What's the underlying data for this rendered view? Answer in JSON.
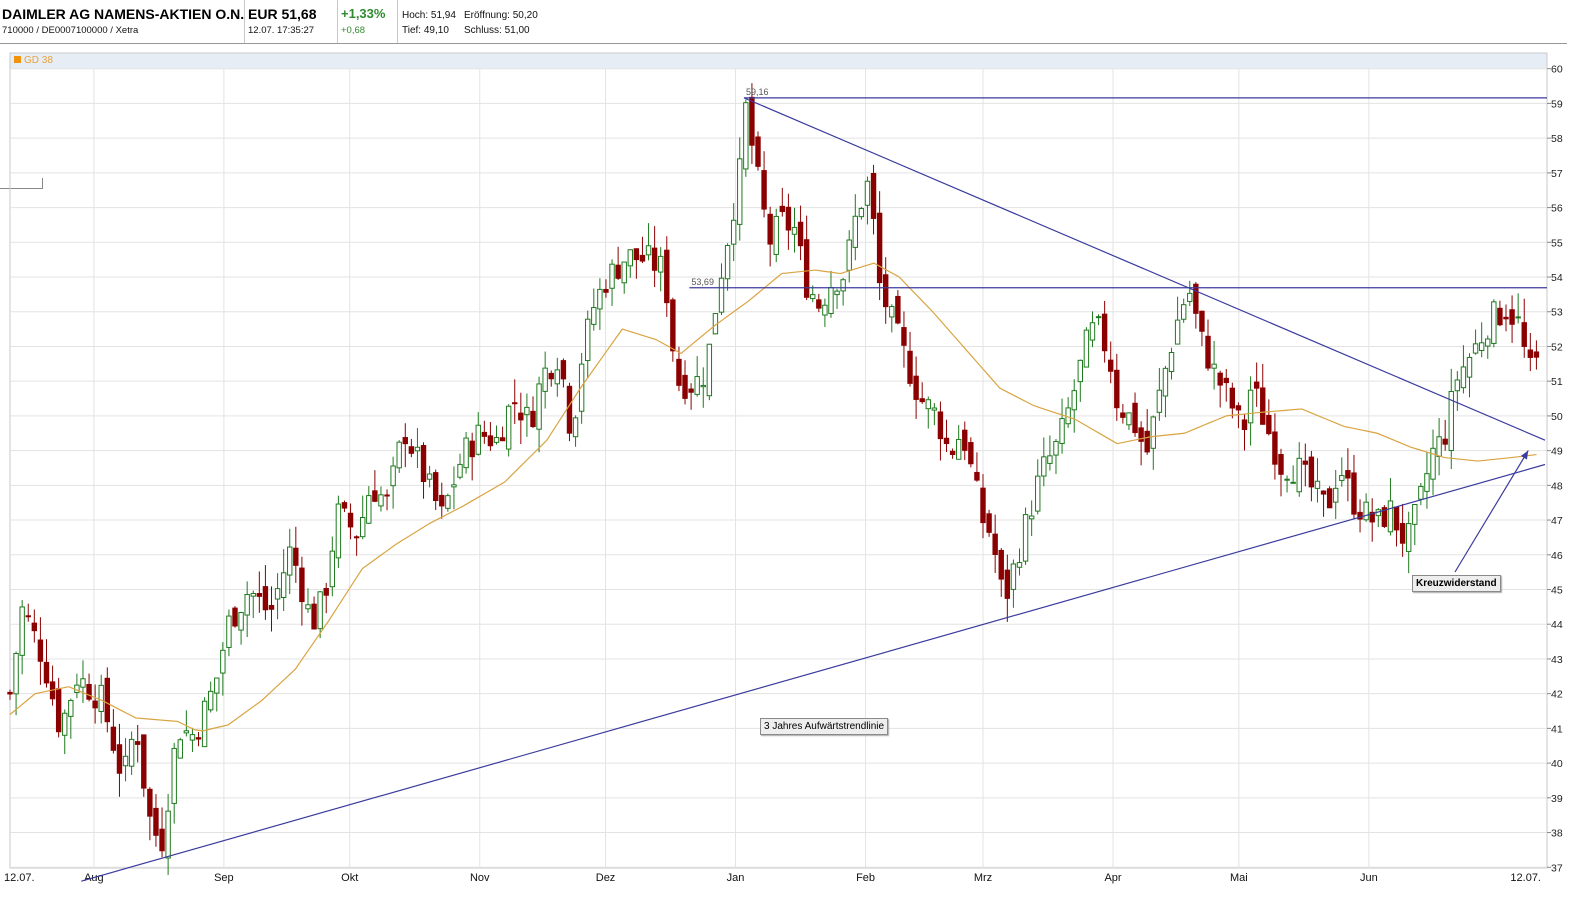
{
  "header": {
    "instrument_name": "DAIMLER AG NAMENS-AKTIEN O.N.",
    "identifiers": "710000 / DE0007100000 / Xetra",
    "price": "EUR 51,68",
    "timestamp": "12.07. 17:35:27",
    "change_pct": "+1,33%",
    "change_abs": "+0,68",
    "high": "Hoch: 51,94",
    "open": "Eröffnung: 50,20",
    "low": "Tief: 49,10",
    "close": "Schluss: 51,00"
  },
  "legend": {
    "label": "GD 38"
  },
  "colors": {
    "up": "#1e7a1e",
    "down": "#8b0000",
    "ma": "#d9a441",
    "trendline": "#3b3b9e",
    "positive": "#2e8b2e"
  },
  "chart_data": {
    "type": "candlestick",
    "ylim": [
      37,
      60
    ],
    "y_ticks": [
      "37",
      "38",
      "39",
      "40",
      "41",
      "42",
      "43",
      "44",
      "45",
      "46",
      "47",
      "48",
      "49",
      "50",
      "51",
      "52",
      "53",
      "54",
      "55",
      "56",
      "57",
      "58",
      "59",
      "60"
    ],
    "x_ticks": [
      {
        "label": "12.07.",
        "day": 0
      },
      {
        "label": "Aug",
        "day": 20
      },
      {
        "label": "Sep",
        "day": 51
      },
      {
        "label": "Okt",
        "day": 81
      },
      {
        "label": "Nov",
        "day": 112
      },
      {
        "label": "Dez",
        "day": 142
      },
      {
        "label": "Jan",
        "day": 173
      },
      {
        "label": "Feb",
        "day": 204
      },
      {
        "label": "Mrz",
        "day": 232
      },
      {
        "label": "Apr",
        "day": 263
      },
      {
        "label": "Mai",
        "day": 293
      },
      {
        "label": "Jun",
        "day": 324
      },
      {
        "label": "12.07.",
        "day": 365
      }
    ],
    "close_anchors": [
      [
        0,
        42.0
      ],
      [
        3,
        44.5
      ],
      [
        8,
        43.0
      ],
      [
        12,
        41.0
      ],
      [
        16,
        42.5
      ],
      [
        22,
        41.8
      ],
      [
        27,
        39.5
      ],
      [
        30,
        41.2
      ],
      [
        33,
        38.5
      ],
      [
        36,
        37.6
      ],
      [
        40,
        41.0
      ],
      [
        44,
        40.8
      ],
      [
        49,
        42.3
      ],
      [
        52,
        44.0
      ],
      [
        57,
        45.0
      ],
      [
        62,
        44.3
      ],
      [
        67,
        46.2
      ],
      [
        72,
        44.0
      ],
      [
        75,
        44.8
      ],
      [
        78,
        47.2
      ],
      [
        83,
        46.6
      ],
      [
        86,
        48.0
      ],
      [
        90,
        47.5
      ],
      [
        94,
        49.6
      ],
      [
        99,
        48.2
      ],
      [
        103,
        47.1
      ],
      [
        108,
        48.9
      ],
      [
        112,
        49.5
      ],
      [
        116,
        49.3
      ],
      [
        120,
        50.5
      ],
      [
        124,
        49.8
      ],
      [
        127,
        51.2
      ],
      [
        131,
        51.8
      ],
      [
        134,
        49.4
      ],
      [
        136,
        51.5
      ],
      [
        139,
        53.1
      ],
      [
        142,
        53.9
      ],
      [
        147,
        54.6
      ],
      [
        152,
        54.5
      ],
      [
        156,
        54.2
      ],
      [
        159,
        51.0
      ],
      [
        163,
        50.9
      ],
      [
        166,
        51.3
      ],
      [
        169,
        53.8
      ],
      [
        172,
        55.7
      ],
      [
        174,
        57.0
      ],
      [
        175,
        59.16
      ],
      [
        178,
        57.0
      ],
      [
        181,
        55.0
      ],
      [
        184,
        55.6
      ],
      [
        187,
        55.4
      ],
      [
        190,
        53.8
      ],
      [
        193,
        53.2
      ],
      [
        196,
        53.9
      ],
      [
        199,
        54.1
      ],
      [
        202,
        55.9
      ],
      [
        205,
        56.8
      ],
      [
        207,
        53.9
      ],
      [
        210,
        52.8
      ],
      [
        214,
        51.5
      ],
      [
        217,
        50.5
      ],
      [
        221,
        50.0
      ],
      [
        224,
        48.9
      ],
      [
        227,
        49.6
      ],
      [
        230,
        48.0
      ],
      [
        232,
        47.0
      ],
      [
        234,
        46.6
      ],
      [
        237,
        44.6
      ],
      [
        240,
        45.9
      ],
      [
        243,
        47.2
      ],
      [
        246,
        48.4
      ],
      [
        250,
        49.2
      ],
      [
        253,
        50.4
      ],
      [
        257,
        52.2
      ],
      [
        259,
        52.6
      ],
      [
        262,
        51.8
      ],
      [
        264,
        50.4
      ],
      [
        268,
        49.8
      ],
      [
        271,
        48.9
      ],
      [
        275,
        51.1
      ],
      [
        278,
        52.6
      ],
      [
        281,
        53.7
      ],
      [
        284,
        52.2
      ],
      [
        287,
        51.3
      ],
      [
        291,
        50.4
      ],
      [
        294,
        49.5
      ],
      [
        296,
        50.9
      ],
      [
        299,
        49.9
      ],
      [
        303,
        48.6
      ],
      [
        307,
        48.5
      ],
      [
        311,
        47.8
      ],
      [
        314,
        47.3
      ],
      [
        317,
        48.6
      ],
      [
        320,
        47.6
      ],
      [
        323,
        47.2
      ],
      [
        326,
        46.9
      ],
      [
        329,
        47.3
      ],
      [
        333,
        46.3
      ],
      [
        336,
        47.4
      ],
      [
        339,
        48.9
      ],
      [
        342,
        49.4
      ],
      [
        345,
        51.1
      ],
      [
        347,
        51.5
      ],
      [
        350,
        52.1
      ],
      [
        353,
        52.8
      ],
      [
        357,
        53.1
      ],
      [
        360,
        52.6
      ],
      [
        362,
        51.2
      ],
      [
        365,
        51.68
      ]
    ],
    "ma_label": "GD 38",
    "ma_anchors": [
      [
        0,
        41.4
      ],
      [
        6,
        42.0
      ],
      [
        14,
        42.2
      ],
      [
        22,
        41.8
      ],
      [
        30,
        41.3
      ],
      [
        40,
        41.2
      ],
      [
        45,
        40.9
      ],
      [
        52,
        41.1
      ],
      [
        60,
        41.8
      ],
      [
        68,
        42.7
      ],
      [
        76,
        44.1
      ],
      [
        84,
        45.6
      ],
      [
        92,
        46.3
      ],
      [
        100,
        46.9
      ],
      [
        108,
        47.4
      ],
      [
        118,
        48.1
      ],
      [
        128,
        49.3
      ],
      [
        136,
        50.8
      ],
      [
        146,
        52.5
      ],
      [
        154,
        52.2
      ],
      [
        160,
        51.8
      ],
      [
        168,
        52.6
      ],
      [
        176,
        53.3
      ],
      [
        184,
        54.1
      ],
      [
        192,
        54.2
      ],
      [
        198,
        54.1
      ],
      [
        206,
        54.4
      ],
      [
        212,
        54.0
      ],
      [
        220,
        53.0
      ],
      [
        228,
        51.9
      ],
      [
        236,
        50.8
      ],
      [
        244,
        50.3
      ],
      [
        254,
        49.9
      ],
      [
        264,
        49.2
      ],
      [
        272,
        49.4
      ],
      [
        280,
        49.5
      ],
      [
        290,
        50.0
      ],
      [
        298,
        50.1
      ],
      [
        308,
        50.2
      ],
      [
        318,
        49.7
      ],
      [
        326,
        49.5
      ],
      [
        334,
        49.1
      ],
      [
        342,
        48.8
      ],
      [
        350,
        48.7
      ],
      [
        358,
        48.8
      ],
      [
        365,
        48.9
      ]
    ],
    "horizontal_lines": [
      {
        "label": "59,16",
        "value": 59.16,
        "from_day": 175
      },
      {
        "label": "53,69",
        "value": 53.69,
        "from_day": 162
      }
    ],
    "trendlines": [
      {
        "from": [
          175,
          59.16
        ],
        "to": [
          366,
          49.3
        ]
      },
      {
        "from": [
          17,
          36.6
        ],
        "to": [
          366,
          48.6
        ]
      }
    ],
    "annotations": {
      "trendline_label": "3 Jahres Aufwärtstrendlinie",
      "cross_resistance": "Kreuzwiderstand"
    }
  }
}
